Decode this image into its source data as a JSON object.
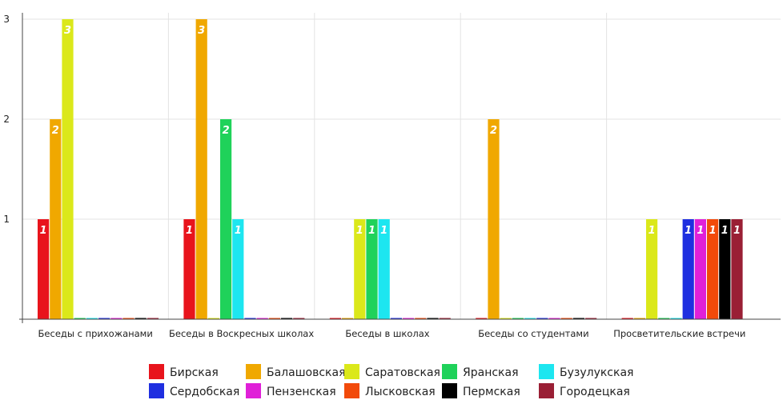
{
  "chart_data": {
    "type": "bar",
    "categories": [
      "Беседы с прихожанами",
      "Беседы в Воскресных школах",
      "Беседы в школах",
      "Беседы со студентами",
      "Просветительские встречи"
    ],
    "ylim": [
      0,
      3
    ],
    "yticks": [
      "1",
      "2",
      "3"
    ],
    "grid": true,
    "legend_position": "bottom",
    "series": [
      {
        "name": "Бирская",
        "color": "#e8141c",
        "values": [
          1,
          1,
          0,
          0,
          0
        ]
      },
      {
        "name": "Балашовская",
        "color": "#f0a800",
        "values": [
          2,
          3,
          0,
          2,
          0
        ]
      },
      {
        "name": "Саратовская",
        "color": "#dbe81a",
        "values": [
          3,
          0,
          1,
          0,
          1
        ]
      },
      {
        "name": "Яранская",
        "color": "#1fd25a",
        "values": [
          0,
          2,
          1,
          0,
          0
        ]
      },
      {
        "name": "Бузулукская",
        "color": "#1de6f0",
        "values": [
          0,
          1,
          1,
          0,
          0
        ]
      },
      {
        "name": "Сердобская",
        "color": "#1f2fe0",
        "values": [
          0,
          0,
          0,
          0,
          1
        ]
      },
      {
        "name": "Пензенская",
        "color": "#e020d8",
        "values": [
          0,
          0,
          0,
          0,
          1
        ]
      },
      {
        "name": "Лысковская",
        "color": "#f24a0a",
        "values": [
          0,
          0,
          0,
          0,
          1
        ]
      },
      {
        "name": "Пермская",
        "color": "#000000",
        "values": [
          0,
          0,
          0,
          0,
          1
        ]
      },
      {
        "name": "Городецкая",
        "color": "#9a1f35",
        "values": [
          0,
          0,
          0,
          0,
          1
        ]
      }
    ]
  }
}
